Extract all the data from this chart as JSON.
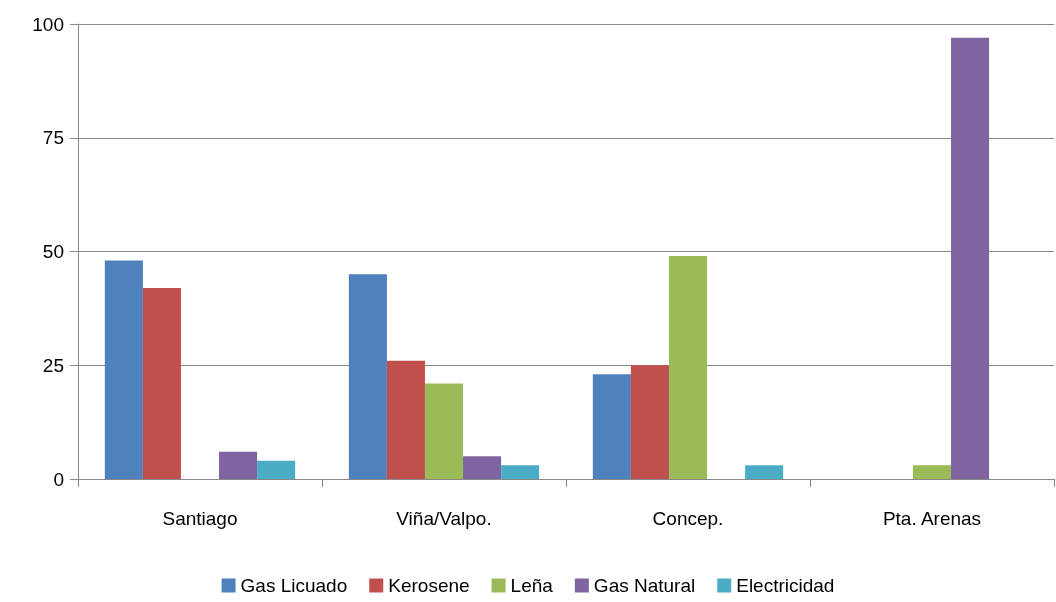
{
  "chart_data": {
    "type": "bar",
    "categories": [
      "Santiago",
      "Viña/Valpo.",
      "Concep.",
      "Pta. Arenas"
    ],
    "series": [
      {
        "name": "Gas Licuado",
        "color": "#4f81bd",
        "values": [
          48,
          45,
          23,
          0
        ]
      },
      {
        "name": "Kerosene",
        "color": "#c0504d",
        "values": [
          42,
          26,
          25,
          0
        ]
      },
      {
        "name": "Leña",
        "color": "#9bbb59",
        "values": [
          0,
          21,
          49,
          3
        ]
      },
      {
        "name": "Gas Natural",
        "color": "#8064a2",
        "values": [
          6,
          5,
          0,
          97
        ]
      },
      {
        "name": "Electricidad",
        "color": "#4bacc6",
        "values": [
          4,
          3,
          3,
          0
        ]
      }
    ],
    "ylim": [
      0,
      100
    ],
    "yticks": [
      0,
      25,
      50,
      75,
      100
    ],
    "grid": "y",
    "legend": "bottom"
  }
}
